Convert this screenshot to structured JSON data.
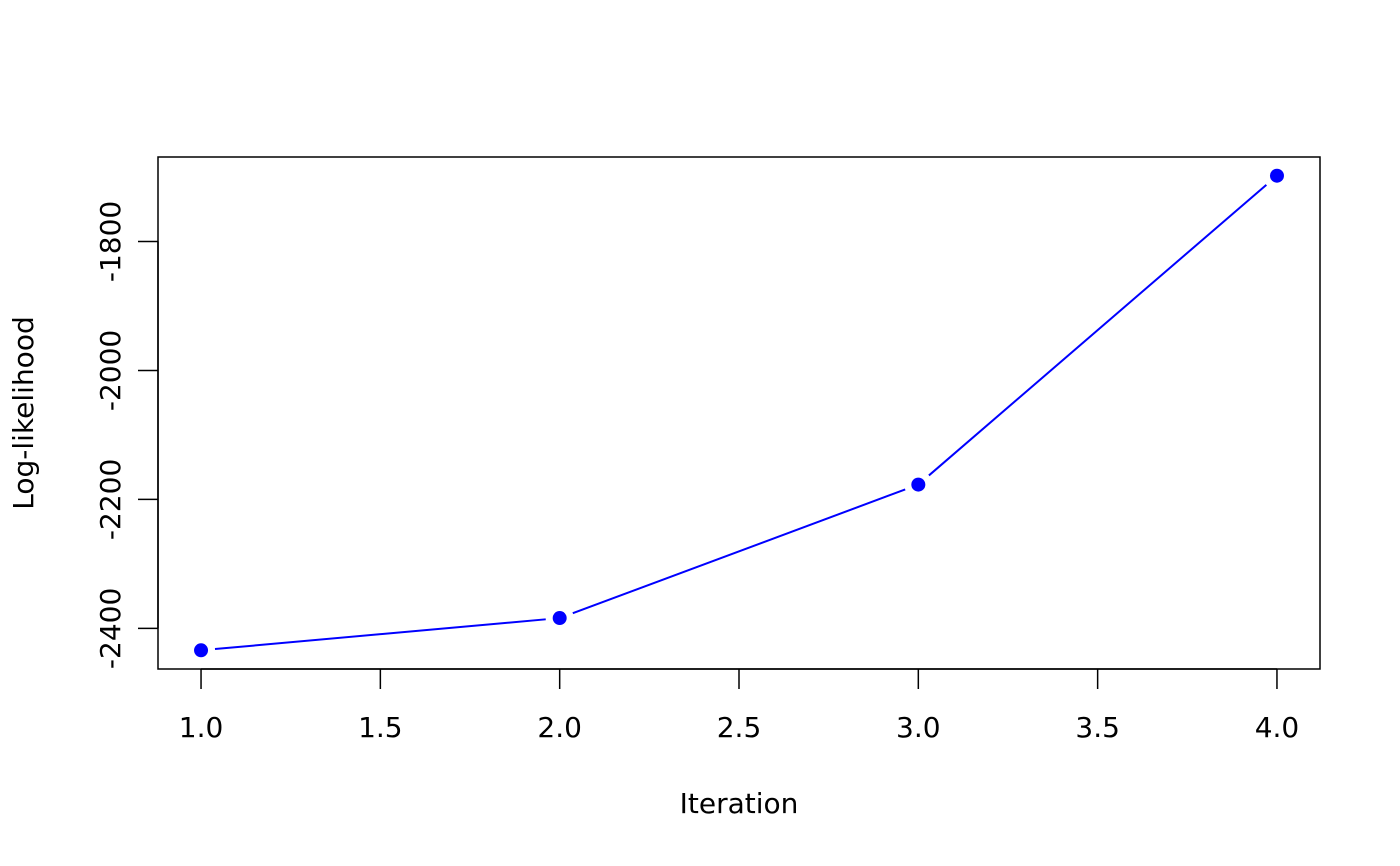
{
  "chart_data": {
    "type": "line",
    "xlabel": "Iteration",
    "ylabel": "Log-likelihood",
    "x": [
      1,
      2,
      3,
      4
    ],
    "series": [
      {
        "color": "#0000ff",
        "values": [
          -2434,
          -2384,
          -2177,
          -1698
        ]
      }
    ],
    "xlim": [
      0.88,
      4.12
    ],
    "xticks": [
      {
        "value": 1,
        "label": "1.0"
      },
      1.5,
      {
        "value": 2,
        "label": "2.0"
      },
      2.5,
      {
        "value": 3,
        "label": "3.0"
      },
      3.5,
      {
        "value": 4,
        "label": "4.0"
      }
    ],
    "ylim": [
      -2463,
      -1669
    ],
    "yticks": [
      -2400,
      -2200,
      -2000,
      -1800
    ],
    "grid": false,
    "markers": true,
    "line_gaps": true
  }
}
